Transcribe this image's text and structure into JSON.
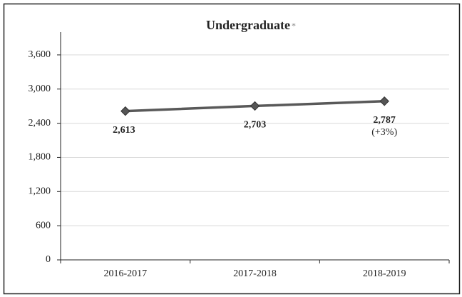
{
  "chart_data": {
    "type": "line",
    "title": "Undergraduate",
    "title_note": "*",
    "categories": [
      "2016-2017",
      "2017-2018",
      "2018-2019"
    ],
    "values": [
      2613,
      2703,
      2787
    ],
    "value_labels": [
      "2,613",
      "2,703",
      "2,787"
    ],
    "annotations": [
      {
        "index": 2,
        "text": "(+3%)"
      }
    ],
    "color": "#595959",
    "ylim": [
      0,
      4000
    ],
    "yticks": [
      0,
      600,
      {
        "value": 1200,
        "label": "1,200"
      },
      {
        "value": 1800,
        "label": "1,800"
      },
      {
        "value": 2400,
        "label": "2,400"
      },
      {
        "value": 3000,
        "label": "3,000"
      },
      {
        "value": 3600,
        "label": "3,600"
      }
    ],
    "grid": true
  }
}
